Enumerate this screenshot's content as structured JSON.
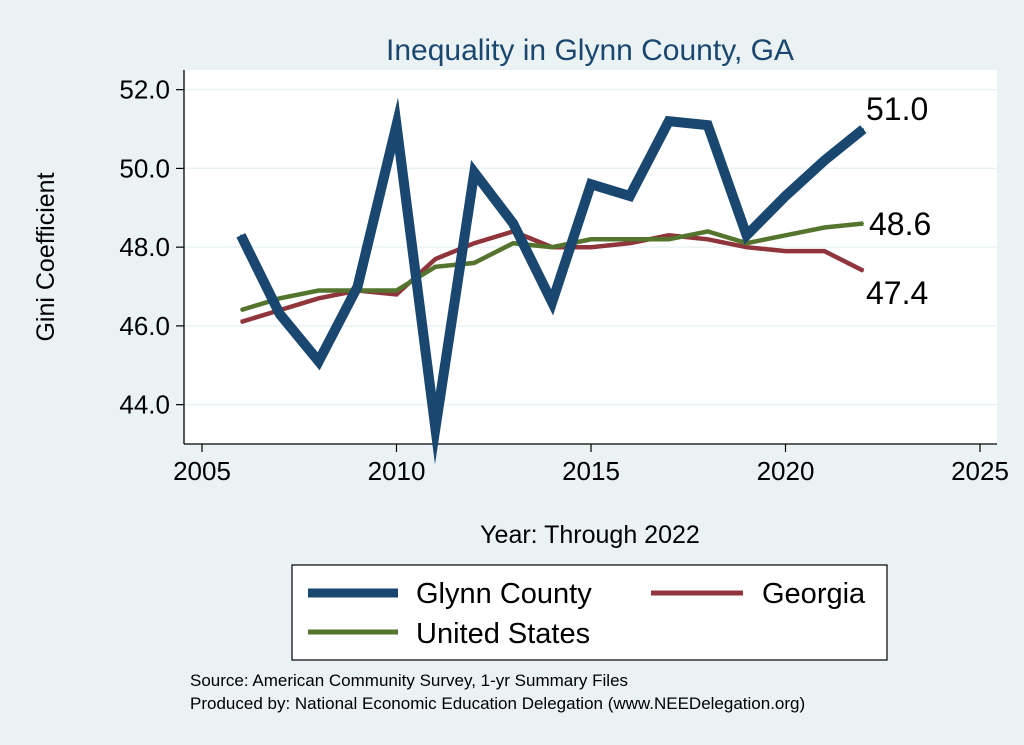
{
  "chart_data": {
    "type": "line",
    "title": "Inequality in Glynn County, GA",
    "xlabel": "Year: Through 2022",
    "ylabel": "Gini Coefficient",
    "xlim": [
      2005,
      2025
    ],
    "ylim": [
      43.0,
      52.5
    ],
    "xticks": [
      2005,
      2010,
      2015,
      2020,
      2025
    ],
    "yticks": [
      44.0,
      46.0,
      48.0,
      50.0,
      52.0
    ],
    "ytick_labels": [
      "44.0",
      "46.0",
      "48.0",
      "50.0",
      "52.0"
    ],
    "grid": true,
    "legend_position": "bottom",
    "series": [
      {
        "name": "Glynn County",
        "color": "#1a476f",
        "x": [
          2006,
          2007,
          2008,
          2009,
          2010,
          2011,
          2012,
          2013,
          2014,
          2015,
          2016,
          2017,
          2018,
          2019,
          2020,
          2021,
          2022
        ],
        "values": [
          48.3,
          46.3,
          45.1,
          47.0,
          51.1,
          43.4,
          49.9,
          48.6,
          46.6,
          49.6,
          49.3,
          51.2,
          51.1,
          48.3,
          49.3,
          50.2,
          51.0
        ],
        "end_label": "51.0"
      },
      {
        "name": "Georgia",
        "color": "#90353b",
        "x": [
          2006,
          2007,
          2008,
          2009,
          2010,
          2011,
          2012,
          2013,
          2014,
          2015,
          2016,
          2017,
          2018,
          2019,
          2020,
          2021,
          2022
        ],
        "values": [
          46.1,
          46.4,
          46.7,
          46.9,
          46.8,
          47.7,
          48.1,
          48.4,
          48.0,
          48.0,
          48.1,
          48.3,
          48.2,
          48.0,
          47.9,
          47.9,
          47.4
        ],
        "end_label": "47.4"
      },
      {
        "name": "United States",
        "color": "#55752f",
        "x": [
          2006,
          2007,
          2008,
          2009,
          2010,
          2011,
          2012,
          2013,
          2014,
          2015,
          2016,
          2017,
          2018,
          2019,
          2020,
          2021,
          2022
        ],
        "values": [
          46.4,
          46.7,
          46.9,
          46.9,
          46.9,
          47.5,
          47.6,
          48.1,
          48.0,
          48.2,
          48.2,
          48.2,
          48.4,
          48.1,
          48.3,
          48.5,
          48.6
        ],
        "end_label": "48.6"
      }
    ]
  },
  "footer": {
    "source": "Source: American Community Survey, 1-yr Summary Files",
    "produced_by": "Produced by: National Economic Education Delegation (www.NEEDelegation.org)"
  }
}
